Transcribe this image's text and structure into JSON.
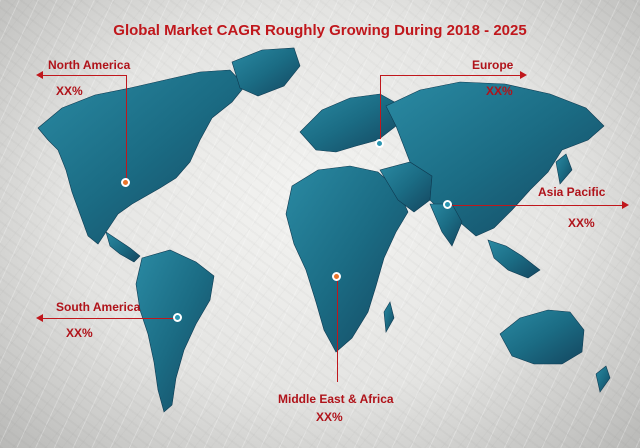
{
  "title": "Global Market CAGR Roughly Growing During 2018 - 2025",
  "colors": {
    "title": "#c0171c",
    "label": "#b0131a",
    "continent": "#1d6f86",
    "marker_orange": "#e8742a",
    "marker_teal": "#2b95b0"
  },
  "regions": {
    "north_america": {
      "name": "North America",
      "value": "XX%"
    },
    "europe": {
      "name": "Europe",
      "value": "XX%"
    },
    "asia_pacific": {
      "name": "Asia Pacific",
      "value": "XX%"
    },
    "south_america": {
      "name": "South America",
      "value": "XX%"
    },
    "middle_east_africa": {
      "name": "Middle East & Africa",
      "value": "XX%"
    }
  }
}
